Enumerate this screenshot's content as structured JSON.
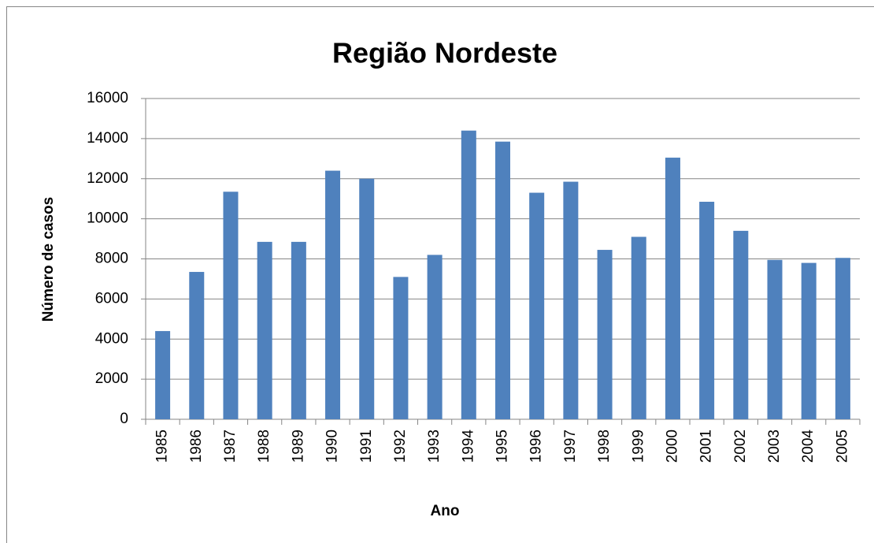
{
  "chart_data": {
    "type": "bar",
    "title": "Região Nordeste",
    "x_label": "Ano",
    "y_label": "Número de casos",
    "categories": [
      "1985",
      "1986",
      "1987",
      "1988",
      "1989",
      "1990",
      "1991",
      "1992",
      "1993",
      "1994",
      "1995",
      "1996",
      "1997",
      "1998",
      "1999",
      "2000",
      "2001",
      "2002",
      "2003",
      "2004",
      "2005"
    ],
    "values": [
      4400,
      7350,
      11350,
      8850,
      8850,
      12400,
      12000,
      7100,
      8200,
      14400,
      13850,
      11300,
      11850,
      8450,
      9100,
      13050,
      10850,
      9400,
      7950,
      7800,
      8050
    ],
    "color": "#4f81bd",
    "ylim": [
      0,
      16000
    ],
    "yticks": [
      0,
      2000,
      4000,
      6000,
      8000,
      10000,
      12000,
      14000,
      16000
    ],
    "grid": true
  }
}
